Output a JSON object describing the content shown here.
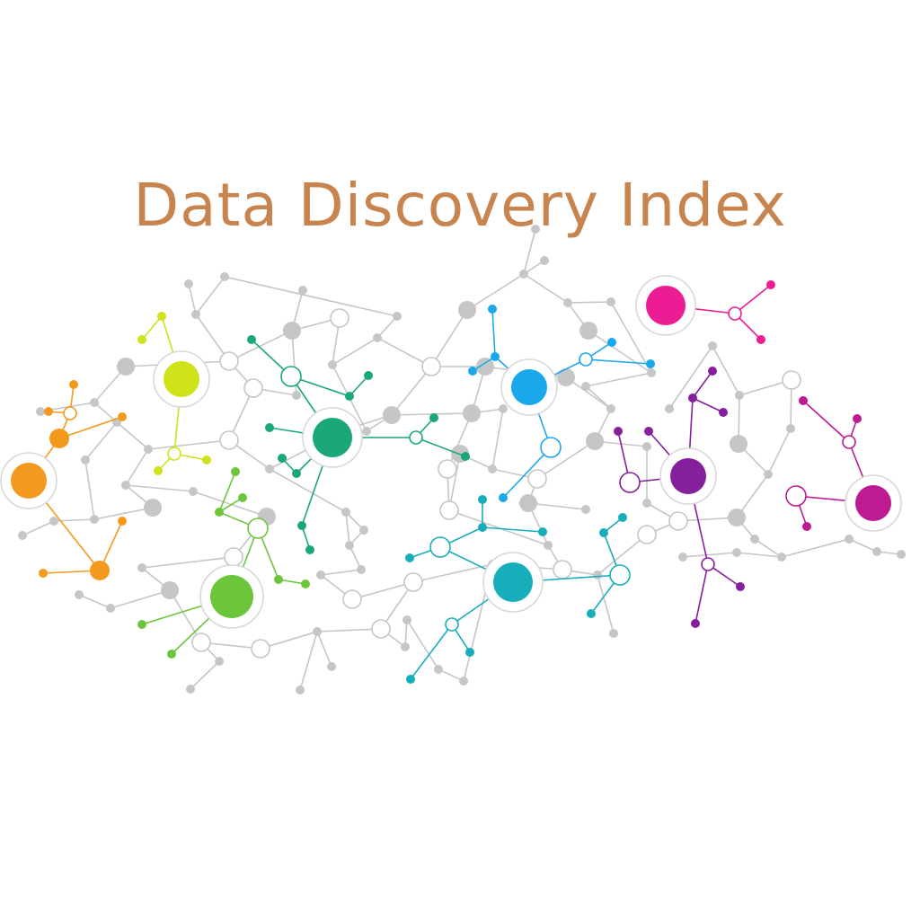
{
  "title": "Data Discovery Index",
  "colors": {
    "title": "#c8844e",
    "network_gray": "#c6c6c6",
    "orange": "#f39a1e",
    "lime": "#cfe21a",
    "green": "#1aa77a",
    "light_green": "#6cc53a",
    "sky_blue": "#1aa8ec",
    "teal": "#17aebb",
    "magenta": "#ec1c94",
    "purple": "#861f9c",
    "berry": "#be1a92"
  },
  "graphic": {
    "name": "network-graph-illustration",
    "hub_colors": [
      "orange",
      "lime",
      "green",
      "light_green",
      "sky_blue",
      "teal",
      "magenta",
      "purple",
      "berry"
    ]
  }
}
